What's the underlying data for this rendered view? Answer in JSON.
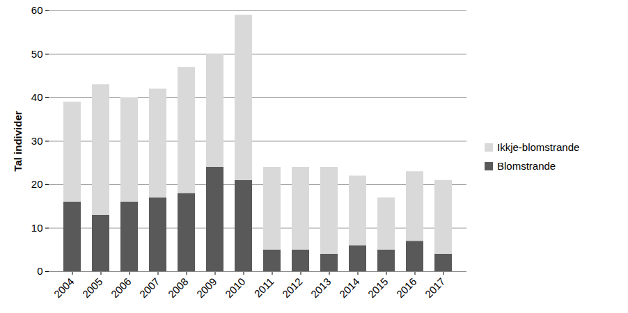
{
  "chart_data": {
    "type": "bar",
    "stacked": true,
    "y_label": "Tal individer",
    "categories": [
      "2004",
      "2005",
      "2006",
      "2007",
      "2008",
      "2009",
      "2010",
      "2011",
      "2012",
      "2013",
      "2014",
      "2015",
      "2016",
      "2017"
    ],
    "series": [
      {
        "name": "Blomstrande",
        "color": "#595959",
        "values": [
          16,
          13,
          16,
          17,
          18,
          24,
          21,
          5,
          5,
          4,
          6,
          5,
          7,
          4
        ]
      },
      {
        "name": "Ikkje-blomstrande",
        "color": "#d9d9d9",
        "values": [
          23,
          30,
          24,
          25,
          29,
          26,
          38,
          19,
          19,
          20,
          16,
          12,
          16,
          17
        ]
      }
    ],
    "ylim": [
      0,
      60
    ],
    "yticks": [
      0,
      10,
      20,
      30,
      40,
      50,
      60
    ],
    "grid": true,
    "legend": "right"
  }
}
